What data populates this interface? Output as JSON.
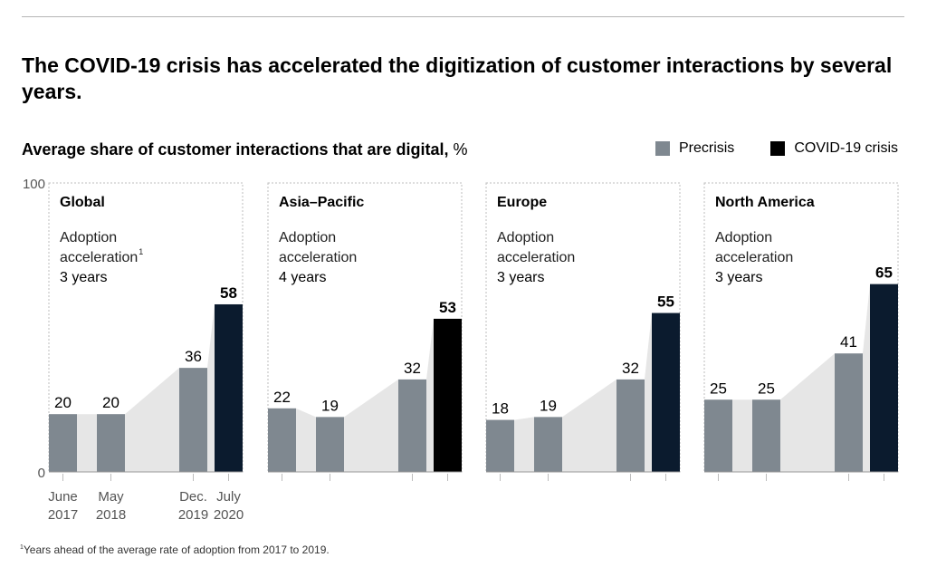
{
  "title": "The COVID-19 crisis has accelerated the digitization of customer interactions by several years.",
  "subtitle": {
    "bold": "Average share of customer interactions that are digital,",
    "unit": " %"
  },
  "legend": [
    {
      "label": "Precrisis",
      "color": "#7f8890"
    },
    {
      "label": "COVID-19 crisis",
      "color": "#000000"
    }
  ],
  "footnote": {
    "mark": "1",
    "text": "Years ahead of the average rate of adoption from 2017 to 2019."
  },
  "chart_data": {
    "type": "bar",
    "ylim": [
      0,
      100
    ],
    "y_ticks": [
      0,
      100
    ],
    "categories": [
      "June 2017",
      "May 2018",
      "Dec. 2019",
      "July 2020"
    ],
    "category_labels": [
      [
        "June",
        "2017"
      ],
      [
        "May",
        "2018"
      ],
      [
        "Dec.",
        "2019"
      ],
      [
        "July",
        "2020"
      ]
    ],
    "colors": {
      "precrisis": "#7f8890",
      "covid_global": "#0b1b2e",
      "covid_asia": "#000000",
      "covid_europe": "#0b1b2e",
      "covid_na": "#0b1b2e",
      "area": "#e6e6e6"
    },
    "panels": [
      {
        "region": "Global",
        "annotation": [
          "Adoption",
          "acceleration",
          "3 years"
        ],
        "footnote_mark": "1",
        "values": [
          20,
          20,
          36,
          58
        ],
        "covid_color_key": "covid_global"
      },
      {
        "region": "Asia–Pacific",
        "annotation": [
          "Adoption",
          "acceleration",
          "4 years"
        ],
        "footnote_mark": "",
        "values": [
          22,
          19,
          32,
          53
        ],
        "covid_color_key": "covid_asia"
      },
      {
        "region": "Europe",
        "annotation": [
          "Adoption",
          "acceleration",
          "3 years"
        ],
        "footnote_mark": "",
        "values": [
          18,
          19,
          32,
          55
        ],
        "covid_color_key": "covid_europe"
      },
      {
        "region": "North America",
        "annotation": [
          "Adoption",
          "acceleration",
          "3 years"
        ],
        "footnote_mark": "",
        "values": [
          25,
          25,
          41,
          65
        ],
        "covid_color_key": "covid_na"
      }
    ]
  }
}
